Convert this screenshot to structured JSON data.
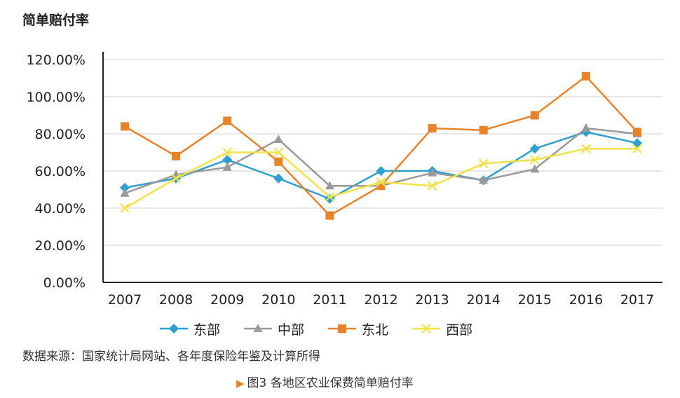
{
  "colors": {
    "东部": "#2e9fd1",
    "中部": "#9a9a9a",
    "东北": "#e8832a",
    "西部": "#f3e247"
  },
  "chart_data": {
    "type": "line",
    "ylabel": "简单赔付率",
    "categories": [
      "2007",
      "2008",
      "2009",
      "2010",
      "2011",
      "2012",
      "2013",
      "2014",
      "2015",
      "2016",
      "2017"
    ],
    "ylim": [
      0,
      120
    ],
    "yticks": [
      "0.00%",
      "20.00%",
      "40.00%",
      "60.00%",
      "80.00%",
      "100.00%",
      "120.00%"
    ],
    "grid": true,
    "legend_position": "bottom",
    "series": [
      {
        "name": "东部",
        "marker": "diamond",
        "values": [
          51,
          56,
          66,
          56,
          45,
          60,
          60,
          55,
          72,
          81,
          75
        ]
      },
      {
        "name": "中部",
        "marker": "triangle",
        "values": [
          48,
          58,
          62,
          77,
          52,
          52,
          59,
          55,
          61,
          83,
          80
        ]
      },
      {
        "name": "东北",
        "marker": "square",
        "values": [
          84,
          68,
          87,
          65,
          36,
          52,
          83,
          82,
          90,
          111,
          81
        ]
      },
      {
        "name": "西部",
        "marker": "x",
        "values": [
          40,
          56,
          70,
          70,
          46,
          54,
          52,
          64,
          66,
          72,
          72
        ]
      }
    ]
  },
  "source_text": "数据来源：国家统计局网站、各年度保险年鉴及计算所得",
  "caption": {
    "marker": "▶",
    "text": "图3  各地区农业保费简单赔付率"
  }
}
